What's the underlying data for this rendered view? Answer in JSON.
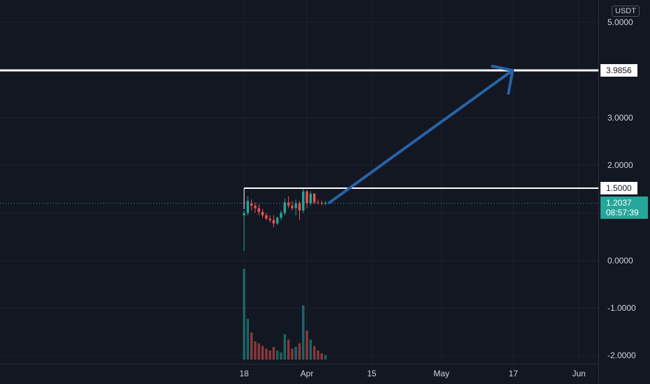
{
  "price_axis": {
    "currency": "USDT",
    "ticks": [
      "5.0000",
      "3.0000",
      "2.0000",
      "0.0000",
      "-1.0000",
      "-2.0000"
    ],
    "horizontal_lines": [
      {
        "label": "3.9856",
        "color": "#ffffff"
      },
      {
        "label": "1.5000",
        "color": "#ffffff"
      }
    ],
    "current_price": {
      "label": "1.2037",
      "countdown": "08:57:39",
      "color": "#26a69a"
    }
  },
  "time_axis": {
    "ticks": [
      "18",
      "Apr",
      "15",
      "May",
      "17",
      "Jun"
    ]
  },
  "colors": {
    "background": "#131722",
    "up": "#26a69a",
    "down": "#ef5350",
    "arrow": "#2962a6",
    "grid": "#1e222d"
  },
  "drawings": {
    "arrow": {
      "from_label": "1.5000",
      "to_label": "3.9856",
      "icon": "trend-arrow"
    }
  },
  "chart_data": {
    "type": "candlestick",
    "ylim": [
      -2.0,
      5.0
    ],
    "candles": [
      {
        "o": 0.95,
        "h": 1.05,
        "l": 0.2,
        "c": 1.0,
        "v": 1.0
      },
      {
        "o": 1.0,
        "h": 1.35,
        "l": 0.95,
        "c": 1.25,
        "v": 0.45
      },
      {
        "o": 1.2,
        "h": 1.28,
        "l": 1.05,
        "c": 1.15,
        "v": 0.3
      },
      {
        "o": 1.15,
        "h": 1.22,
        "l": 1.0,
        "c": 1.1,
        "v": 0.2
      },
      {
        "o": 1.1,
        "h": 1.18,
        "l": 0.95,
        "c": 1.02,
        "v": 0.18
      },
      {
        "o": 1.02,
        "h": 1.08,
        "l": 0.9,
        "c": 0.95,
        "v": 0.15
      },
      {
        "o": 0.95,
        "h": 1.0,
        "l": 0.85,
        "c": 0.88,
        "v": 0.12
      },
      {
        "o": 0.88,
        "h": 0.95,
        "l": 0.8,
        "c": 0.85,
        "v": 0.1
      },
      {
        "o": 0.85,
        "h": 0.95,
        "l": 0.7,
        "c": 0.78,
        "v": 0.14
      },
      {
        "o": 0.78,
        "h": 0.92,
        "l": 0.75,
        "c": 0.9,
        "v": 0.1
      },
      {
        "o": 0.9,
        "h": 1.05,
        "l": 0.85,
        "c": 1.0,
        "v": 0.08
      },
      {
        "o": 1.0,
        "h": 1.3,
        "l": 0.95,
        "c": 1.22,
        "v": 0.28
      },
      {
        "o": 1.22,
        "h": 1.35,
        "l": 1.1,
        "c": 1.15,
        "v": 0.22
      },
      {
        "o": 1.15,
        "h": 1.25,
        "l": 1.05,
        "c": 1.1,
        "v": 0.12
      },
      {
        "o": 1.1,
        "h": 1.28,
        "l": 0.95,
        "c": 1.2,
        "v": 0.14
      },
      {
        "o": 1.2,
        "h": 1.25,
        "l": 0.85,
        "c": 1.05,
        "v": 0.18
      },
      {
        "o": 1.05,
        "h": 1.5,
        "l": 1.0,
        "c": 1.45,
        "v": 0.6
      },
      {
        "o": 1.45,
        "h": 1.48,
        "l": 1.1,
        "c": 1.2,
        "v": 0.32
      },
      {
        "o": 1.2,
        "h": 1.45,
        "l": 1.15,
        "c": 1.4,
        "v": 0.22
      },
      {
        "o": 1.4,
        "h": 1.42,
        "l": 1.18,
        "c": 1.22,
        "v": 0.15
      },
      {
        "o": 1.22,
        "h": 1.28,
        "l": 1.18,
        "c": 1.21,
        "v": 0.1
      },
      {
        "o": 1.21,
        "h": 1.26,
        "l": 1.16,
        "c": 1.2,
        "v": 0.07
      },
      {
        "o": 1.2,
        "h": 1.25,
        "l": 1.17,
        "c": 1.2037,
        "v": 0.05
      }
    ]
  }
}
